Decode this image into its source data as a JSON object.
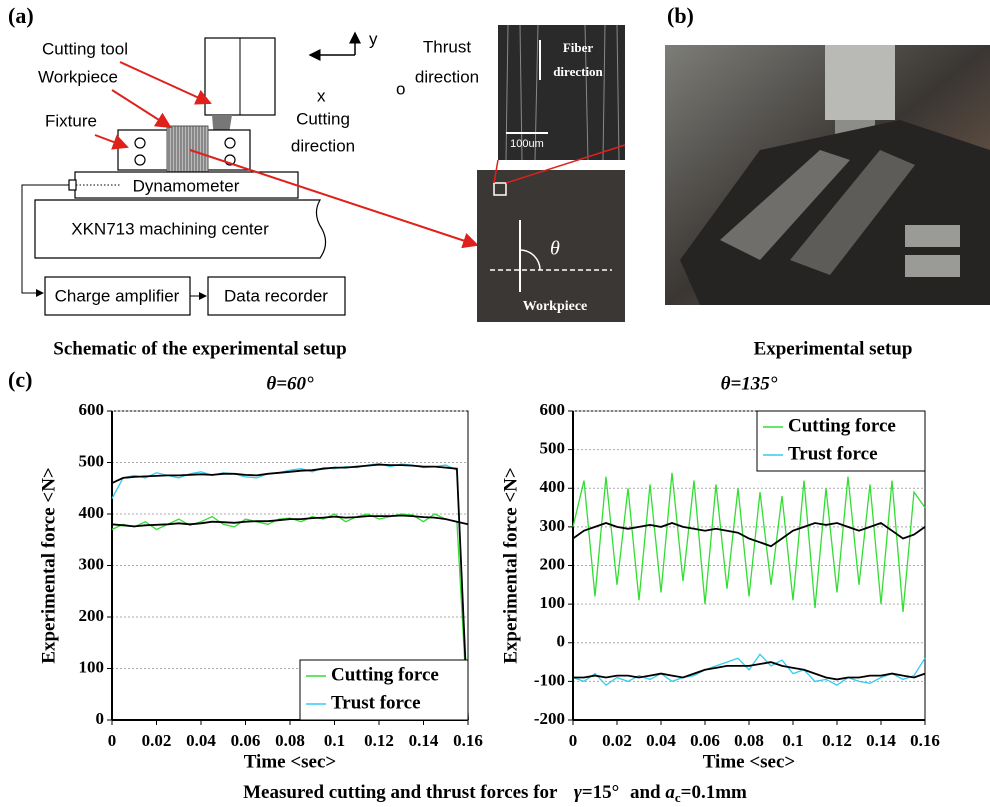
{
  "panel_a": {
    "label": "(a)",
    "cutting_tool": "Cutting tool",
    "workpiece": "Workpiece",
    "fixture": "Fixture",
    "dynamometer": "Dynamometer",
    "machining_center": "XKN713 machining center",
    "charge_amplifier": "Charge amplifier",
    "data_recorder": "Data recorder",
    "axis_y": "y",
    "axis_x": "x",
    "origin": "o",
    "thrust_direction": [
      "Thrust",
      "direction"
    ],
    "cutting_direction": [
      "Cutting",
      "direction"
    ],
    "fiber_direction": [
      "Fiber",
      "direction"
    ],
    "scale_bar": "100um",
    "theta": "θ",
    "workpiece_image": "Workpiece",
    "caption": "Schematic of the experimental setup"
  },
  "panel_b": {
    "label": "(b)",
    "caption": "Experimental setup"
  },
  "panel_c": {
    "label": "(c)"
  },
  "caption": {
    "lead": "Measured cutting and thrust forces for",
    "gamma": "γ",
    "gamma_value": "=15°",
    "and": "and",
    "a": "a",
    "sub": "c",
    "rest": "=0.1mm"
  },
  "chart_data": [
    {
      "type": "line",
      "title": "θ=60°",
      "xlabel": "Time <sec>",
      "ylabel": "Experimental force <N>",
      "xlim": [
        0,
        0.16
      ],
      "xticks": [
        0,
        0.02,
        0.04,
        0.06,
        0.08,
        0.1,
        0.12,
        0.14,
        0.16
      ],
      "ylim": [
        0,
        600
      ],
      "yticks": [
        0,
        100,
        200,
        300,
        400,
        500,
        600
      ],
      "grid": true,
      "legend": "lower right",
      "x": [
        0,
        0.005,
        0.01,
        0.015,
        0.02,
        0.025,
        0.03,
        0.035,
        0.04,
        0.045,
        0.05,
        0.055,
        0.06,
        0.065,
        0.07,
        0.075,
        0.08,
        0.085,
        0.09,
        0.095,
        0.1,
        0.105,
        0.11,
        0.115,
        0.12,
        0.125,
        0.13,
        0.135,
        0.14,
        0.145,
        0.15,
        0.155,
        0.16
      ],
      "series": [
        {
          "name": "Cutting force",
          "color": "#33dd33",
          "values": [
            370,
            380,
            375,
            385,
            370,
            380,
            390,
            378,
            385,
            395,
            380,
            375,
            390,
            385,
            380,
            390,
            392,
            385,
            395,
            390,
            400,
            385,
            395,
            400,
            390,
            395,
            400,
            398,
            385,
            400,
            390,
            385,
            0
          ]
        },
        {
          "name": "Trust force",
          "color": "#33ccee",
          "values": [
            430,
            470,
            475,
            470,
            480,
            475,
            470,
            478,
            482,
            475,
            480,
            478,
            472,
            470,
            478,
            480,
            485,
            488,
            482,
            490,
            488,
            492,
            490,
            495,
            498,
            492,
            497,
            495,
            490,
            492,
            495,
            485,
            0
          ]
        },
        {
          "color": "#000000",
          "values": [
            460,
            470,
            472,
            473,
            474,
            475,
            475,
            476,
            477,
            476,
            478,
            478,
            476,
            475,
            478,
            480,
            482,
            484,
            485,
            488,
            490,
            490,
            492,
            494,
            496,
            495,
            495,
            494,
            492,
            492,
            490,
            488,
            0
          ]
        },
        {
          "color": "#000000",
          "values": [
            380,
            378,
            376,
            378,
            379,
            380,
            382,
            380,
            382,
            385,
            384,
            383,
            385,
            386,
            386,
            388,
            390,
            390,
            392,
            393,
            395,
            393,
            394,
            396,
            396,
            396,
            397,
            396,
            394,
            393,
            390,
            385,
            380
          ]
        }
      ]
    },
    {
      "type": "line",
      "title": "θ=135°",
      "xlabel": "Time <sec>",
      "ylabel": "Experimental force <N>",
      "xlim": [
        0,
        0.16
      ],
      "xticks": [
        0,
        0.02,
        0.04,
        0.06,
        0.08,
        0.1,
        0.12,
        0.14,
        0.16
      ],
      "ylim": [
        -200,
        600
      ],
      "yticks": [
        -200,
        -100,
        0,
        100,
        200,
        300,
        400,
        500,
        600
      ],
      "grid": true,
      "legend": "upper right",
      "x": [
        0,
        0.005,
        0.01,
        0.015,
        0.02,
        0.025,
        0.03,
        0.035,
        0.04,
        0.045,
        0.05,
        0.055,
        0.06,
        0.065,
        0.07,
        0.075,
        0.08,
        0.085,
        0.09,
        0.095,
        0.1,
        0.105,
        0.11,
        0.115,
        0.12,
        0.125,
        0.13,
        0.135,
        0.14,
        0.145,
        0.15,
        0.155,
        0.16
      ],
      "series": [
        {
          "name": "Cutting force",
          "color": "#33dd33",
          "values": [
            300,
            420,
            120,
            430,
            150,
            400,
            110,
            410,
            130,
            440,
            160,
            420,
            100,
            410,
            140,
            400,
            120,
            390,
            150,
            380,
            110,
            420,
            90,
            400,
            130,
            430,
            150,
            410,
            100,
            420,
            80,
            390,
            350
          ]
        },
        {
          "name": "Trust force",
          "color": "#33ccee",
          "values": [
            -90,
            -100,
            -80,
            -110,
            -90,
            -100,
            -85,
            -95,
            -80,
            -100,
            -90,
            -85,
            -70,
            -60,
            -50,
            -40,
            -70,
            -30,
            -60,
            -45,
            -80,
            -70,
            -100,
            -95,
            -110,
            -90,
            -100,
            -105,
            -90,
            -80,
            -95,
            -85,
            -40
          ]
        },
        {
          "color": "#000000",
          "values": [
            270,
            290,
            300,
            310,
            300,
            295,
            300,
            305,
            300,
            310,
            300,
            295,
            290,
            295,
            290,
            285,
            270,
            260,
            250,
            270,
            290,
            300,
            310,
            305,
            310,
            300,
            290,
            300,
            310,
            290,
            270,
            280,
            300
          ]
        },
        {
          "color": "#000000",
          "values": [
            -90,
            -90,
            -85,
            -90,
            -85,
            -85,
            -90,
            -85,
            -80,
            -85,
            -90,
            -80,
            -70,
            -65,
            -60,
            -60,
            -60,
            -55,
            -50,
            -60,
            -65,
            -70,
            -80,
            -90,
            -95,
            -90,
            -90,
            -85,
            -85,
            -80,
            -85,
            -90,
            -80
          ]
        }
      ]
    }
  ]
}
